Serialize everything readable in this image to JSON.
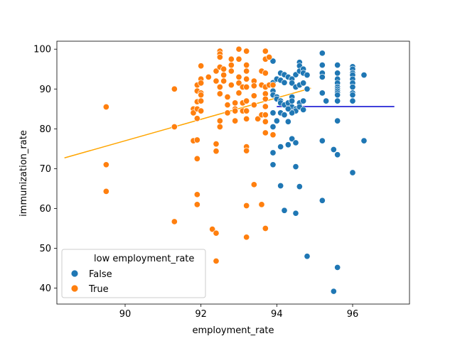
{
  "chart_data": {
    "type": "scatter",
    "title": "",
    "xlabel": "employment_rate",
    "ylabel": "immunization_rate",
    "xlim": [
      88.2,
      97.5
    ],
    "ylim": [
      36,
      102
    ],
    "xticks": [
      90,
      92,
      94,
      96
    ],
    "yticks": [
      40,
      50,
      60,
      70,
      80,
      90,
      100
    ],
    "grid": false,
    "legend": {
      "title": "low employment_rate",
      "placement": "lower-left"
    },
    "series": [
      {
        "name": "False",
        "color": "#1f77b4",
        "points": [
          [
            93.9,
            97
          ],
          [
            94.1,
            94
          ],
          [
            94.2,
            93.6
          ],
          [
            94.5,
            93.6
          ],
          [
            94.6,
            96.7
          ],
          [
            94.6,
            95.8
          ],
          [
            94.6,
            94.5
          ],
          [
            94.7,
            95
          ],
          [
            94.7,
            94
          ],
          [
            95.2,
            99
          ],
          [
            95.2,
            96
          ],
          [
            95.2,
            94
          ],
          [
            95.6,
            96
          ],
          [
            95.6,
            94
          ],
          [
            96,
            95.6
          ],
          [
            96,
            95
          ],
          [
            96,
            94
          ],
          [
            93.9,
            91.6
          ],
          [
            94,
            92.5
          ],
          [
            94.1,
            92.2
          ],
          [
            94.2,
            91.6
          ],
          [
            94.3,
            93
          ],
          [
            94.4,
            92.5
          ],
          [
            94.4,
            91.5
          ],
          [
            94.5,
            90.5
          ],
          [
            94.6,
            91
          ],
          [
            94.7,
            91.5
          ],
          [
            94.8,
            90
          ],
          [
            94.8,
            93.5
          ],
          [
            95.2,
            93
          ],
          [
            95.6,
            92.5
          ],
          [
            95.6,
            91.5
          ],
          [
            95.6,
            90.5
          ],
          [
            95.6,
            90
          ],
          [
            95.6,
            89.5
          ],
          [
            95.6,
            89
          ],
          [
            96,
            93.5
          ],
          [
            96,
            92.5
          ],
          [
            96,
            91.5
          ],
          [
            96,
            90.5
          ],
          [
            96,
            89
          ],
          [
            96,
            88.5
          ],
          [
            96.3,
            93.5
          ],
          [
            95.2,
            89
          ],
          [
            93.9,
            89.5
          ],
          [
            93.9,
            88.5
          ],
          [
            94,
            88
          ],
          [
            94,
            87.5
          ],
          [
            94.1,
            87
          ],
          [
            94.1,
            86.5
          ],
          [
            94.2,
            86
          ],
          [
            94.3,
            86.5
          ],
          [
            94.4,
            88
          ],
          [
            94.4,
            87
          ],
          [
            94.4,
            85.5
          ],
          [
            94.5,
            85
          ],
          [
            94.5,
            84.5
          ],
          [
            94.6,
            86.5
          ],
          [
            94.6,
            85.5
          ],
          [
            94.7,
            87
          ],
          [
            94.7,
            84.8
          ],
          [
            94.4,
            84
          ],
          [
            94.3,
            85
          ],
          [
            95.3,
            87
          ],
          [
            95.6,
            88.5
          ],
          [
            95.6,
            87
          ],
          [
            96,
            87
          ],
          [
            94.1,
            84
          ],
          [
            94.2,
            83.5
          ],
          [
            93.9,
            84
          ],
          [
            94,
            82
          ],
          [
            93.9,
            80.5
          ],
          [
            94.3,
            81.8
          ],
          [
            95.6,
            82
          ],
          [
            94.4,
            77.5
          ],
          [
            94.3,
            76
          ],
          [
            94.5,
            76.5
          ],
          [
            94.1,
            75.5
          ],
          [
            93.9,
            74
          ],
          [
            93.9,
            71
          ],
          [
            94.5,
            70.5
          ],
          [
            95.2,
            77
          ],
          [
            95.5,
            74.8
          ],
          [
            95.6,
            73.5
          ],
          [
            96,
            69
          ],
          [
            96.3,
            77
          ],
          [
            94.1,
            65.7
          ],
          [
            94.6,
            65.5
          ],
          [
            95.2,
            62
          ],
          [
            94.2,
            59.5
          ],
          [
            94.5,
            58.8
          ],
          [
            94.8,
            48
          ],
          [
            95.6,
            45.2
          ],
          [
            95.5,
            39.2
          ]
        ]
      },
      {
        "name": "True",
        "color": "#ff7f0e",
        "points": [
          [
            89.5,
            85.5
          ],
          [
            89.5,
            71
          ],
          [
            89.5,
            64.3
          ],
          [
            91.3,
            90
          ],
          [
            91.3,
            80.5
          ],
          [
            91.3,
            56.7
          ],
          [
            91.8,
            85
          ],
          [
            91.8,
            84
          ],
          [
            91.8,
            77
          ],
          [
            91.9,
            91
          ],
          [
            91.9,
            89.5
          ],
          [
            91.9,
            86.8
          ],
          [
            91.9,
            85
          ],
          [
            91.9,
            82.6
          ],
          [
            91.9,
            77.2
          ],
          [
            91.9,
            72.5
          ],
          [
            91.9,
            63.5
          ],
          [
            91.9,
            61
          ],
          [
            92,
            95.8
          ],
          [
            92,
            92.5
          ],
          [
            92,
            91.5
          ],
          [
            92,
            89
          ],
          [
            92,
            88.5
          ],
          [
            92,
            87
          ],
          [
            92,
            84.5
          ],
          [
            92.2,
            93
          ],
          [
            92.3,
            54.8
          ],
          [
            92.4,
            53.8
          ],
          [
            92.4,
            76.2
          ],
          [
            92.4,
            74.4
          ],
          [
            92.4,
            46.8
          ],
          [
            92.4,
            94.5
          ],
          [
            92.4,
            92
          ],
          [
            92.5,
            90.5
          ],
          [
            92.5,
            88.8
          ],
          [
            92.5,
            82
          ],
          [
            92.5,
            80.5
          ],
          [
            92.5,
            99.5
          ],
          [
            92.5,
            98.8
          ],
          [
            92.5,
            98
          ],
          [
            92.5,
            95.5
          ],
          [
            92.6,
            95
          ],
          [
            92.6,
            93.5
          ],
          [
            92.6,
            92
          ],
          [
            92.7,
            88
          ],
          [
            92.7,
            86
          ],
          [
            92.7,
            84
          ],
          [
            92.8,
            97.5
          ],
          [
            92.8,
            96
          ],
          [
            92.8,
            94.5
          ],
          [
            92.8,
            91
          ],
          [
            92.9,
            86.5
          ],
          [
            92.9,
            85
          ],
          [
            92.9,
            84.5
          ],
          [
            92.9,
            82
          ],
          [
            93,
            100
          ],
          [
            93,
            97.5
          ],
          [
            93,
            93
          ],
          [
            93,
            91.5
          ],
          [
            93,
            89
          ],
          [
            93.1,
            90.5
          ],
          [
            93.1,
            86.5
          ],
          [
            93.1,
            84.5
          ],
          [
            93.2,
            99.5
          ],
          [
            93.2,
            96
          ],
          [
            93.2,
            94.5
          ],
          [
            93.2,
            92.5
          ],
          [
            93.2,
            90.5
          ],
          [
            93.2,
            87
          ],
          [
            93.2,
            84.5
          ],
          [
            93.2,
            82.5
          ],
          [
            93.2,
            75.5
          ],
          [
            93.2,
            74.5
          ],
          [
            93.2,
            60.7
          ],
          [
            93.2,
            52.8
          ],
          [
            93.4,
            92
          ],
          [
            93.4,
            90.8
          ],
          [
            93.4,
            88.3
          ],
          [
            93.4,
            86
          ],
          [
            93.4,
            66
          ],
          [
            93.5,
            82.5
          ],
          [
            93.6,
            94.5
          ],
          [
            93.6,
            91
          ],
          [
            93.6,
            83.5
          ],
          [
            93.6,
            61
          ],
          [
            93.7,
            99.5
          ],
          [
            93.7,
            97.5
          ],
          [
            93.7,
            94
          ],
          [
            93.7,
            90.5
          ],
          [
            93.7,
            88.8
          ],
          [
            93.7,
            87.5
          ],
          [
            93.7,
            85.6
          ],
          [
            93.7,
            83.5
          ],
          [
            93.7,
            81.8
          ],
          [
            93.7,
            79
          ],
          [
            93.7,
            55
          ],
          [
            93.8,
            98
          ],
          [
            93.8,
            91
          ],
          [
            93.9,
            91
          ],
          [
            93.9,
            78.5
          ]
        ]
      }
    ],
    "lines": [
      {
        "name": "False",
        "color": "#0000cd",
        "x": [
          94,
          97.1
        ],
        "y": [
          85.6,
          85.6
        ]
      },
      {
        "name": "True",
        "color": "#ffa500",
        "x": [
          88.4,
          94.9
        ],
        "y": [
          72.7,
          90.2
        ]
      }
    ]
  }
}
